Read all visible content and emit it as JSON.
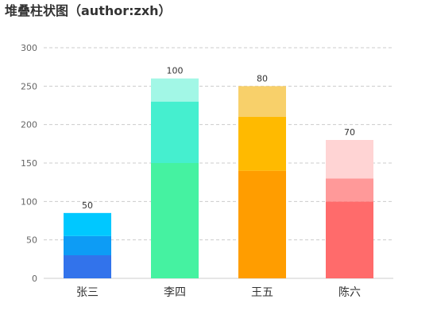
{
  "chart_data": {
    "type": "bar",
    "stacked": true,
    "title": "堆叠柱状图（author:zxh）",
    "categories": [
      "张三",
      "李四",
      "王五",
      "陈六"
    ],
    "ylim": [
      0,
      300
    ],
    "yticks": [
      0,
      50,
      100,
      150,
      200,
      250,
      300
    ],
    "grid": true,
    "legend": "none",
    "bars": [
      {
        "category": "张三",
        "segments": [
          30,
          25,
          30
        ],
        "colors": [
          "#3273eb",
          "#0d9cf5",
          "#00c8ff"
        ],
        "label": "50"
      },
      {
        "category": "李四",
        "segments": [
          150,
          80,
          30
        ],
        "colors": [
          "#45f2a1",
          "#45efcf",
          "#a2f7e6"
        ],
        "label": "100"
      },
      {
        "category": "王五",
        "segments": [
          140,
          70,
          40
        ],
        "colors": [
          "#ff9d00",
          "#ffba00",
          "#f8d06a"
        ],
        "label": "80"
      },
      {
        "category": "陈六",
        "segments": [
          100,
          30,
          50
        ],
        "colors": [
          "#ff6b6b",
          "#ff9999",
          "#ffd4d4"
        ],
        "label": "70"
      }
    ]
  }
}
